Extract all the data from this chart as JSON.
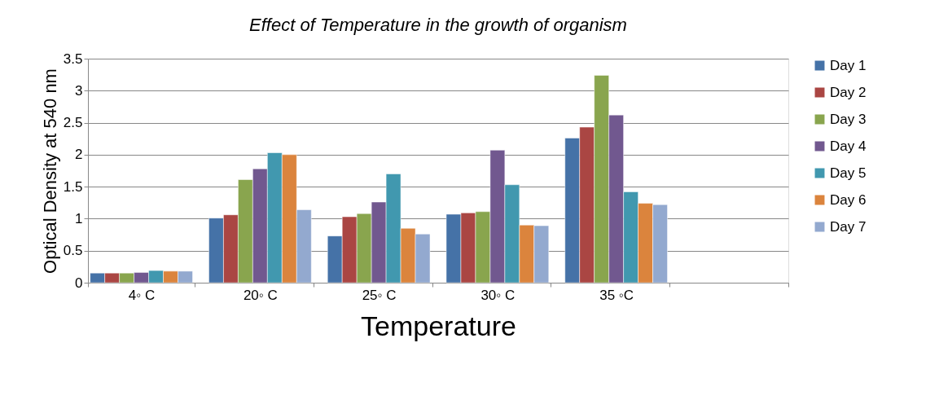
{
  "chart_data": {
    "type": "bar",
    "title": "Effect of Temperature in the growth of organism",
    "xlabel": "Temperature",
    "ylabel": "Optical Density at 540 nm",
    "categories": [
      "4◦ C",
      "20◦ C",
      "25◦ C",
      "30◦ C",
      "35 ◦C",
      null
    ],
    "series": [
      {
        "name": "Day 1",
        "color": "#4572a7",
        "values": [
          0.15,
          1.01,
          0.73,
          1.07,
          2.26,
          null
        ]
      },
      {
        "name": "Day 2",
        "color": "#aa4643",
        "values": [
          0.15,
          1.06,
          1.03,
          1.09,
          2.43,
          null
        ]
      },
      {
        "name": "Day 3",
        "color": "#89a54e",
        "values": [
          0.15,
          1.61,
          1.08,
          1.11,
          3.24,
          null
        ]
      },
      {
        "name": "Day 4",
        "color": "#71588f",
        "values": [
          0.16,
          1.78,
          1.26,
          2.07,
          2.62,
          null
        ]
      },
      {
        "name": "Day 5",
        "color": "#4198af",
        "values": [
          0.19,
          2.03,
          1.7,
          1.53,
          1.42,
          null
        ]
      },
      {
        "name": "Day 6",
        "color": "#db843d",
        "values": [
          0.18,
          2.0,
          0.85,
          0.9,
          1.24,
          null
        ]
      },
      {
        "name": "Day 7",
        "color": "#93a9cf",
        "values": [
          0.18,
          1.14,
          0.76,
          0.89,
          1.22,
          null
        ]
      }
    ],
    "ylim": [
      0,
      3.5
    ],
    "yticks": [
      0,
      0.5,
      1,
      1.5,
      2,
      2.5,
      3,
      3.5
    ],
    "grid": "y",
    "legend": "right"
  }
}
